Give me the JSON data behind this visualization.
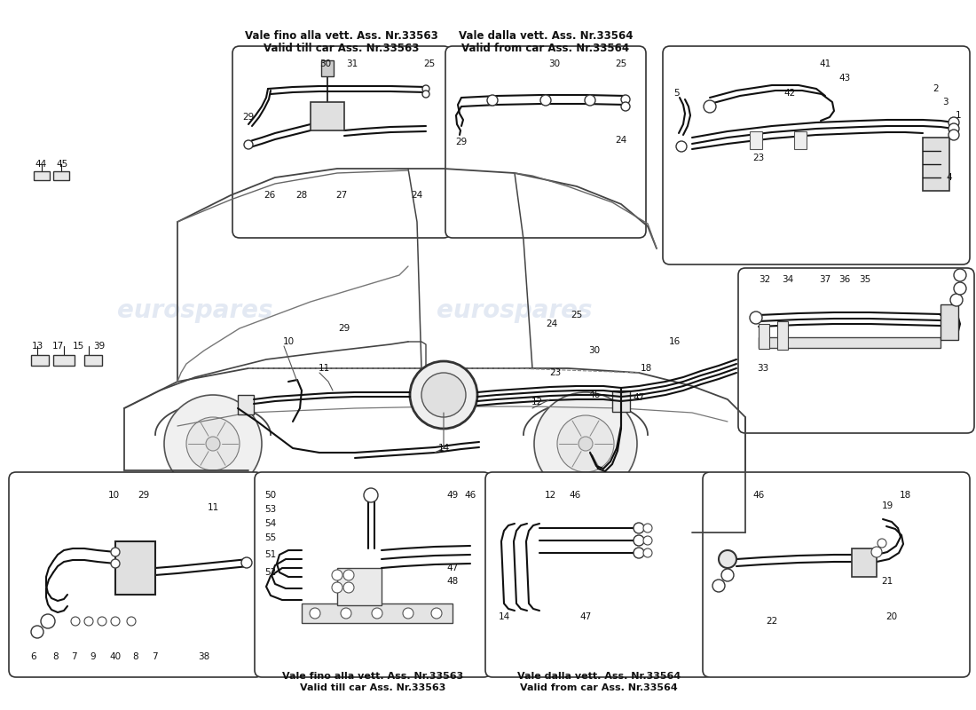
{
  "bg_color": "#ffffff",
  "watermark_text": "eurospares",
  "watermark_color": "#c8d4e8",
  "line_color": "#1a1a1a",
  "text_color": "#111111",
  "box_fill": "#ffffff",
  "box_edge": "#333333",
  "car_color": "#444444",
  "brake_line_color": "#111111",
  "inset_labels": {
    "tl_line1": "Vale fino alla vett. Ass. Nr.33563",
    "tl_line2": "Valid till car Ass. Nr.33563",
    "tc_line1": "Vale dalla vett. Ass. Nr.33564",
    "tc_line2": "Valid from car Ass. Nr.33564",
    "bl_line1": "Vale fino alla vett. Ass. Nr.33563",
    "bl_line2": "Valid till car Ass. Nr.33563",
    "bc_line1": "Vale dalla vett. Ass. Nr.33564",
    "bc_line2": "Valid from car Ass. Nr.33564"
  }
}
